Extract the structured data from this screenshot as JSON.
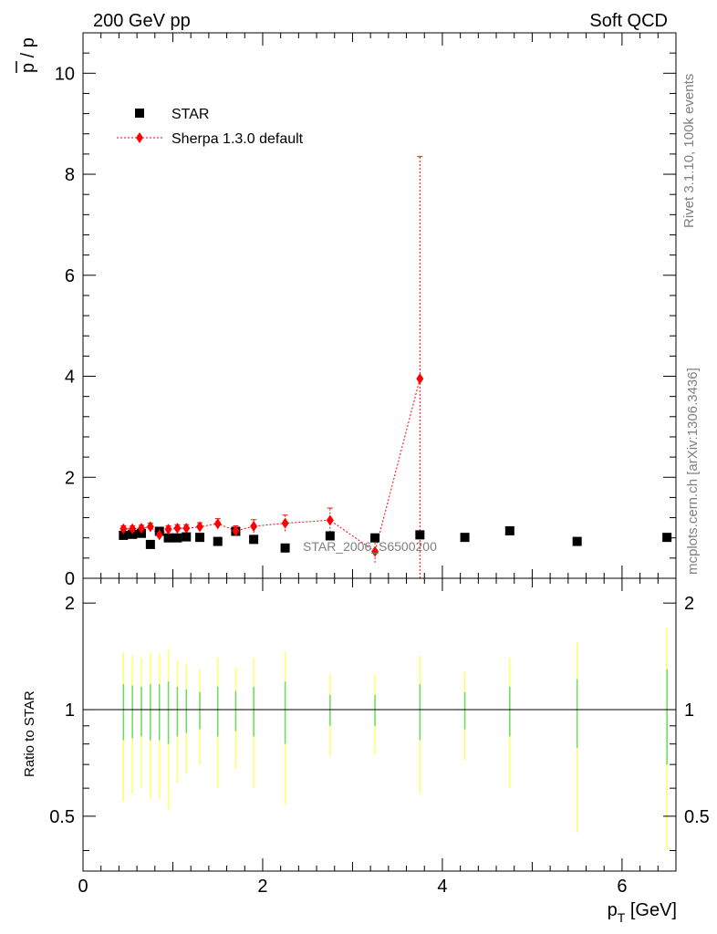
{
  "header": {
    "left": "200 GeV pp",
    "right": "Soft QCD"
  },
  "side": {
    "rivet": "Rivet 3.1.10,  100k events",
    "mcplots": "mcplots.cern.ch [arXiv:1306.3436]"
  },
  "chart_data": [
    {
      "type": "scatter",
      "title": "",
      "ylabel_bar": "p",
      "ylabel_rest": " / p",
      "xlabel_main": "p",
      "xlabel_sub": "T",
      "xlabel_unit": " [GeV]",
      "watermark": "STAR_2006_S6500200",
      "xlim": [
        0,
        6.6
      ],
      "ylim": [
        0,
        10.8
      ],
      "x_ticks": [
        "0",
        "2",
        "4",
        "6"
      ],
      "y_ticks": [
        "0",
        "2",
        "4",
        "6",
        "8",
        "10"
      ],
      "legend_position": "top-left",
      "series": [
        {
          "name": "STAR",
          "color": "#000000",
          "marker": "square",
          "x": [
            0.45,
            0.55,
            0.65,
            0.75,
            0.85,
            0.95,
            1.05,
            1.15,
            1.3,
            1.5,
            1.7,
            1.9,
            2.25,
            2.75,
            3.25,
            3.75,
            4.25,
            4.75,
            5.5,
            6.5
          ],
          "y": [
            0.85,
            0.87,
            0.89,
            0.67,
            0.93,
            0.8,
            0.8,
            0.82,
            0.81,
            0.73,
            0.93,
            0.77,
            0.6,
            0.84,
            0.8,
            0.86,
            0.81,
            0.94,
            0.73,
            0.81
          ]
        },
        {
          "name": "Sherpa 1.3.0 default",
          "color": "#ff0000",
          "marker": "diamond",
          "line": "dotted",
          "x": [
            0.45,
            0.55,
            0.65,
            0.75,
            0.85,
            0.95,
            1.05,
            1.15,
            1.3,
            1.5,
            1.7,
            1.9,
            2.25,
            2.75,
            3.25,
            3.75
          ],
          "y": [
            0.98,
            0.98,
            0.99,
            1.02,
            0.86,
            0.97,
            0.99,
            0.99,
            1.02,
            1.08,
            0.94,
            1.03,
            1.09,
            1.15,
            0.53,
            3.95
          ],
          "yerr": [
            0.06,
            0.06,
            0.06,
            0.07,
            0.06,
            0.07,
            0.07,
            0.07,
            0.08,
            0.1,
            0.1,
            0.13,
            0.16,
            0.24,
            0.22,
            4.4
          ]
        }
      ]
    },
    {
      "type": "scatter",
      "title": "",
      "ylabel": "Ratio to STAR",
      "xlim": [
        0,
        6.6
      ],
      "ylim": [
        0.35,
        2.35
      ],
      "y_ticks": [
        "0.5",
        "1",
        "2"
      ],
      "reference_line": 1,
      "bands": {
        "x": [
          0.45,
          0.55,
          0.65,
          0.75,
          0.85,
          0.95,
          1.05,
          1.15,
          1.3,
          1.5,
          1.7,
          1.9,
          2.25,
          2.75,
          3.25,
          3.75,
          4.25,
          4.75,
          5.5,
          6.5
        ],
        "outer": [
          [
            0.55,
            1.45
          ],
          [
            0.58,
            1.42
          ],
          [
            0.6,
            1.4
          ],
          [
            0.56,
            1.44
          ],
          [
            0.56,
            1.44
          ],
          [
            0.52,
            1.48
          ],
          [
            0.62,
            1.38
          ],
          [
            0.66,
            1.34
          ],
          [
            0.7,
            1.3
          ],
          [
            0.6,
            1.4
          ],
          [
            0.68,
            1.32
          ],
          [
            0.6,
            1.4
          ],
          [
            0.54,
            1.46
          ],
          [
            0.74,
            1.26
          ],
          [
            0.75,
            1.25
          ],
          [
            0.58,
            1.42
          ],
          [
            0.72,
            1.28
          ],
          [
            0.6,
            1.4
          ],
          [
            0.45,
            1.55
          ],
          [
            0.4,
            1.7
          ]
        ],
        "inner": [
          [
            0.82,
            1.18
          ],
          [
            0.83,
            1.17
          ],
          [
            0.84,
            1.16
          ],
          [
            0.82,
            1.18
          ],
          [
            0.82,
            1.18
          ],
          [
            0.8,
            1.2
          ],
          [
            0.84,
            1.16
          ],
          [
            0.86,
            1.14
          ],
          [
            0.88,
            1.12
          ],
          [
            0.84,
            1.16
          ],
          [
            0.87,
            1.13
          ],
          [
            0.84,
            1.16
          ],
          [
            0.8,
            1.2
          ],
          [
            0.9,
            1.1
          ],
          [
            0.9,
            1.1
          ],
          [
            0.82,
            1.18
          ],
          [
            0.88,
            1.12
          ],
          [
            0.84,
            1.16
          ],
          [
            0.78,
            1.22
          ],
          [
            0.7,
            1.3
          ]
        ],
        "outer_color": "#ffff66",
        "inner_color": "#66dd66"
      }
    }
  ]
}
